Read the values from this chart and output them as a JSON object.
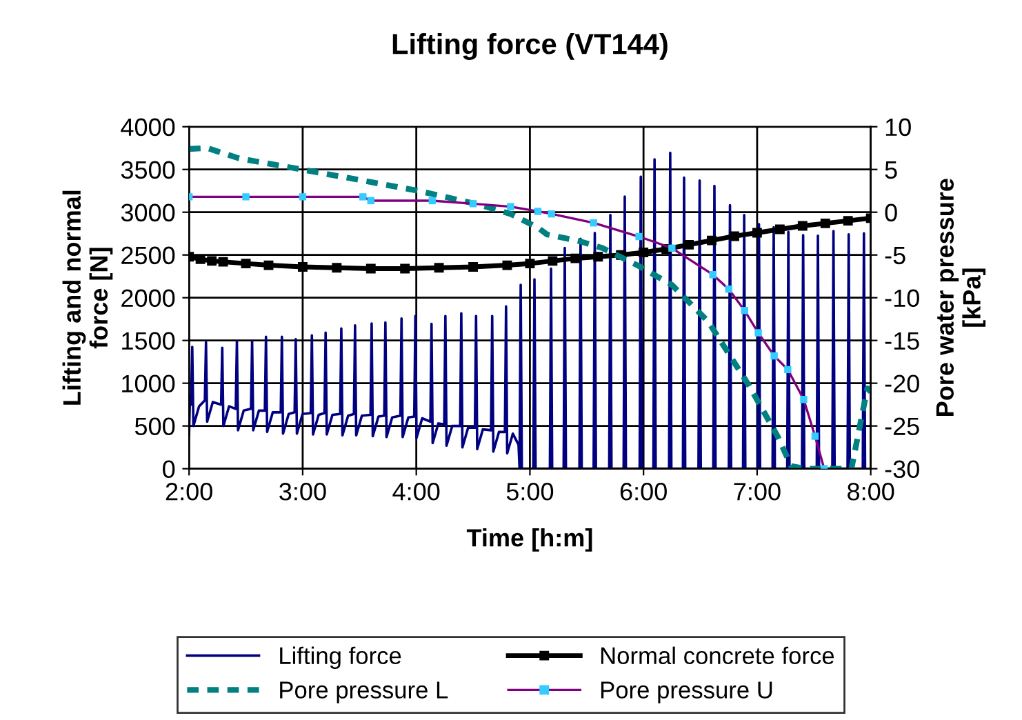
{
  "chart_data": {
    "type": "line",
    "title": "Lifting force (VT144)",
    "xlabel": "Time [h:m]",
    "ylabel": "Lifting and normal\nforce [N]",
    "y2label": "Pore water pressure\n[kPa]",
    "xlim": [
      2,
      8
    ],
    "xticks": [
      {
        "value": 2,
        "label": "2:00"
      },
      {
        "value": 3,
        "label": "3:00"
      },
      {
        "value": 4,
        "label": "4:00"
      },
      {
        "value": 5,
        "label": "5:00"
      },
      {
        "value": 6,
        "label": "6:00"
      },
      {
        "value": 7,
        "label": "7:00"
      },
      {
        "value": 8,
        "label": "8:00"
      }
    ],
    "ylim": [
      0,
      4000
    ],
    "yticks": [
      0,
      500,
      1000,
      1500,
      2000,
      2500,
      3000,
      3500,
      4000
    ],
    "y2lim": [
      -30,
      10
    ],
    "y2ticks": [
      -30,
      -25,
      -20,
      -15,
      -10,
      -5,
      0,
      5,
      10
    ],
    "grid": true,
    "legend": "bottom",
    "series": [
      {
        "name": "Lifting force",
        "color": "#000080",
        "line_style": "solid",
        "x": [
          2.0,
          2.008,
          2.018,
          2.028,
          2.038,
          2.088,
          2.139,
          2.149,
          2.159,
          2.209,
          2.282,
          2.292,
          2.302,
          2.352,
          2.411,
          2.421,
          2.431,
          2.481,
          2.545,
          2.555,
          2.565,
          2.615,
          2.667,
          2.677,
          2.687,
          2.737,
          2.807,
          2.817,
          2.827,
          2.877,
          2.929,
          2.939,
          2.949,
          2.999,
          3.071,
          3.081,
          3.091,
          3.141,
          3.192,
          3.202,
          3.212,
          3.262,
          3.33,
          3.34,
          3.35,
          3.4,
          3.451,
          3.461,
          3.471,
          3.521,
          3.597,
          3.607,
          3.617,
          3.667,
          3.718,
          3.728,
          3.738,
          3.788,
          3.86,
          3.87,
          3.88,
          3.93,
          3.982,
          3.992,
          4.002,
          4.052,
          4.124,
          4.134,
          4.144,
          4.194,
          4.246,
          4.256,
          4.266,
          4.316,
          4.386,
          4.396,
          4.406,
          4.456,
          4.516,
          4.526,
          4.536,
          4.586,
          4.658,
          4.668,
          4.678,
          4.728,
          4.78,
          4.79,
          4.8,
          4.85,
          4.9,
          4.909,
          4.919,
          4.929,
          5.03,
          5.04,
          5.05,
          5.176,
          5.186,
          5.196,
          5.297,
          5.307,
          5.317,
          5.436,
          5.446,
          5.456,
          5.561,
          5.571,
          5.581,
          5.698,
          5.708,
          5.718,
          5.825,
          5.835,
          5.845,
          5.966,
          5.976,
          5.986,
          6.087,
          6.097,
          6.107,
          6.225,
          6.235,
          6.245,
          6.347,
          6.357,
          6.367,
          6.484,
          6.494,
          6.504,
          6.614,
          6.624,
          6.634,
          6.751,
          6.761,
          6.771,
          6.876,
          6.886,
          6.896,
          7.006,
          7.016,
          7.026,
          7.136,
          7.146,
          7.156,
          7.265,
          7.275,
          7.285,
          7.395,
          7.405,
          7.415,
          7.525,
          7.535,
          7.545,
          7.662,
          7.672,
          7.682,
          7.796,
          7.806,
          7.816,
          7.93,
          7.94,
          7.95
        ],
        "values": [
          400,
          850,
          750,
          1425,
          500,
          730,
          800,
          1478,
          550,
          780,
          750,
          1414,
          500,
          730,
          700,
          1490,
          450,
          680,
          700,
          1490,
          450,
          680,
          680,
          1543,
          430,
          660,
          660,
          1543,
          410,
          640,
          660,
          1516,
          410,
          640,
          650,
          1559,
          400,
          630,
          650,
          1591,
          400,
          630,
          640,
          1640,
          390,
          620,
          640,
          1677,
          390,
          620,
          630,
          1699,
          380,
          610,
          620,
          1710,
          370,
          600,
          620,
          1758,
          370,
          600,
          610,
          1785,
          360,
          590,
          550,
          1694,
          300,
          530,
          520,
          1785,
          270,
          500,
          500,
          1817,
          250,
          480,
          480,
          1785,
          230,
          460,
          450,
          1785,
          200,
          430,
          430,
          1898,
          180,
          410,
          280,
          0,
          2151,
          0,
          0,
          2215,
          0,
          0,
          2339,
          0,
          0,
          2581,
          0,
          0,
          2688,
          0,
          0,
          2758,
          0,
          0,
          2968,
          0,
          0,
          3183,
          0,
          0,
          3414,
          0,
          0,
          3618,
          0,
          0,
          3694,
          0,
          0,
          3404,
          0,
          0,
          3371,
          0,
          0,
          3307,
          0,
          0,
          3081,
          0,
          0,
          2968,
          0,
          0,
          2860,
          0,
          0,
          2823,
          0,
          0,
          2769,
          0,
          0,
          2731,
          0,
          0,
          2726,
          0,
          0,
          2780,
          0,
          0,
          2742,
          0,
          0,
          2753,
          0
        ]
      },
      {
        "name": "Normal concrete force",
        "color": "#000000",
        "line_style": "solid",
        "marker": "square",
        "x": [
          2.0,
          2.1,
          2.2,
          2.3,
          2.5,
          2.7,
          3.0,
          3.3,
          3.6,
          3.9,
          4.2,
          4.5,
          4.8,
          5.0,
          5.2,
          5.4,
          5.6,
          5.8,
          6.0,
          6.2,
          6.4,
          6.6,
          6.8,
          7.0,
          7.2,
          7.4,
          7.6,
          7.8,
          8.0
        ],
        "values": [
          2480,
          2450,
          2430,
          2420,
          2400,
          2380,
          2360,
          2350,
          2340,
          2340,
          2350,
          2360,
          2380,
          2400,
          2430,
          2460,
          2480,
          2500,
          2530,
          2570,
          2620,
          2670,
          2720,
          2760,
          2800,
          2840,
          2870,
          2900,
          2930
        ]
      },
      {
        "name": "Pore pressure L",
        "color": "#008080",
        "line_style": "dashed",
        "axis": "y2",
        "x": [
          2.0,
          2.16,
          2.44,
          2.97,
          3.45,
          4.02,
          4.55,
          4.83,
          5.07,
          5.15,
          5.44,
          5.64,
          5.96,
          6.25,
          6.57,
          6.93,
          7.18,
          7.3,
          7.42,
          7.83,
          7.91,
          7.97,
          8.0
        ],
        "values": [
          7.4,
          7.5,
          6.3,
          5.05,
          3.9,
          2.5,
          0.9,
          -0.2,
          -1.8,
          -2.6,
          -3.4,
          -4.2,
          -6.3,
          -8.5,
          -12.8,
          -20.3,
          -26.2,
          -29.7,
          -30,
          -30,
          -24.6,
          -20.6,
          -21
        ]
      },
      {
        "name": "Pore pressure U",
        "color": "#800080",
        "line_style": "solid",
        "marker": "square",
        "axis": "y2",
        "x": [
          2.0,
          2.5,
          3.0,
          3.53,
          3.6,
          4.14,
          4.5,
          4.83,
          5.07,
          5.19,
          5.56,
          5.96,
          6.25,
          6.61,
          6.75,
          6.89,
          7.01,
          7.15,
          7.27,
          7.41,
          7.51,
          7.59
        ],
        "values": [
          1.8,
          1.8,
          1.8,
          1.8,
          1.35,
          1.35,
          1.0,
          0.65,
          0.1,
          -0.2,
          -1.25,
          -2.85,
          -4.2,
          -7.3,
          -9.0,
          -11.5,
          -14.1,
          -16.8,
          -18.4,
          -21.9,
          -26.2,
          -30
        ],
        "colors": [
          "#33ccff",
          "#33ccff",
          "#33ccff",
          "#33ccff",
          "#33ccff",
          "#33ccff",
          "#33ccff",
          "#33ccff",
          "#33ccff",
          "#33ccff",
          "#33ccff",
          "#33ccff",
          "#33ccff",
          "#33ccff",
          "#33ccff",
          "#33ccff",
          "#33ccff",
          "#33ccff",
          "#33ccff",
          "#33ccff",
          "#33ccff",
          "#33ccff"
        ]
      }
    ]
  }
}
